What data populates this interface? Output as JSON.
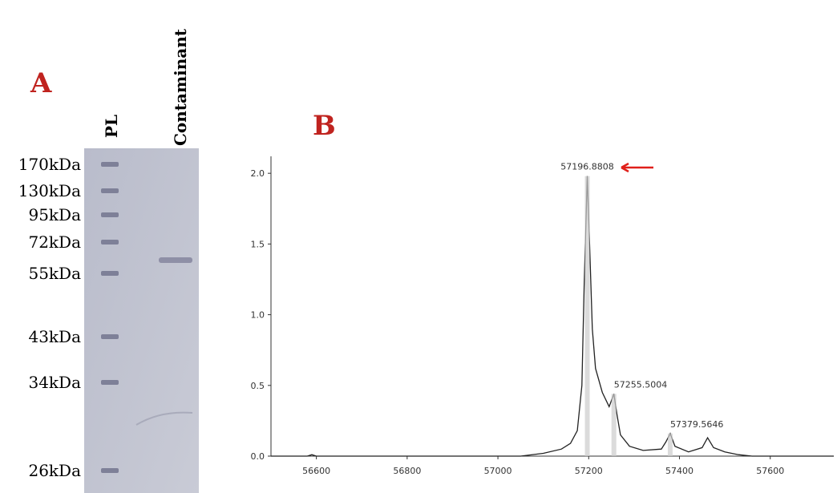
{
  "panel_a": {
    "label": "A",
    "lanes": [
      "PL",
      "Contaminant"
    ],
    "markers": [
      "170kDa",
      "130kDa",
      "95kDa",
      "72kDa",
      "55kDa",
      "43kDa",
      "34kDa",
      "26kDa"
    ]
  },
  "chart_data": {
    "type": "line",
    "title": "B",
    "x": [
      56500,
      56580,
      56590,
      56600,
      57050,
      57100,
      57140,
      57160,
      57175,
      57185,
      57190,
      57196.9,
      57202,
      57208,
      57215,
      57230,
      57245,
      57255.5,
      57262,
      57270,
      57290,
      57320,
      57360,
      57370,
      57379.6,
      57390,
      57420,
      57450,
      57462,
      57475,
      57500,
      57530,
      57560,
      57740
    ],
    "series": [
      {
        "color": "#222222",
        "values": [
          0,
          0,
          0.01,
          0,
          0,
          0.02,
          0.05,
          0.09,
          0.18,
          0.5,
          1.2,
          1.98,
          1.5,
          0.9,
          0.62,
          0.45,
          0.35,
          0.44,
          0.3,
          0.15,
          0.07,
          0.04,
          0.05,
          0.1,
          0.16,
          0.07,
          0.03,
          0.06,
          0.13,
          0.06,
          0.03,
          0.01,
          0,
          0
        ]
      }
    ],
    "xlim": [
      56500,
      57740
    ],
    "ylim": [
      0,
      2.12
    ],
    "xticks": [
      56600,
      56800,
      57000,
      57200,
      57400,
      57600
    ],
    "yticks": [
      {
        "value": 0,
        "label": "0.0"
      },
      {
        "value": 0.5,
        "label": "0.5"
      },
      {
        "value": 1,
        "label": "1.0"
      },
      {
        "value": 1.5,
        "label": "1.5"
      },
      {
        "value": 2,
        "label": "2.0"
      }
    ],
    "annotations": [
      {
        "label": "57196.8808",
        "x": 57196.8808,
        "y": 1.98
      },
      {
        "label": "57255.5004",
        "x": 57255.5004,
        "y": 0.44
      },
      {
        "label": "57379.5646",
        "x": 57379.5646,
        "y": 0.16
      }
    ]
  }
}
